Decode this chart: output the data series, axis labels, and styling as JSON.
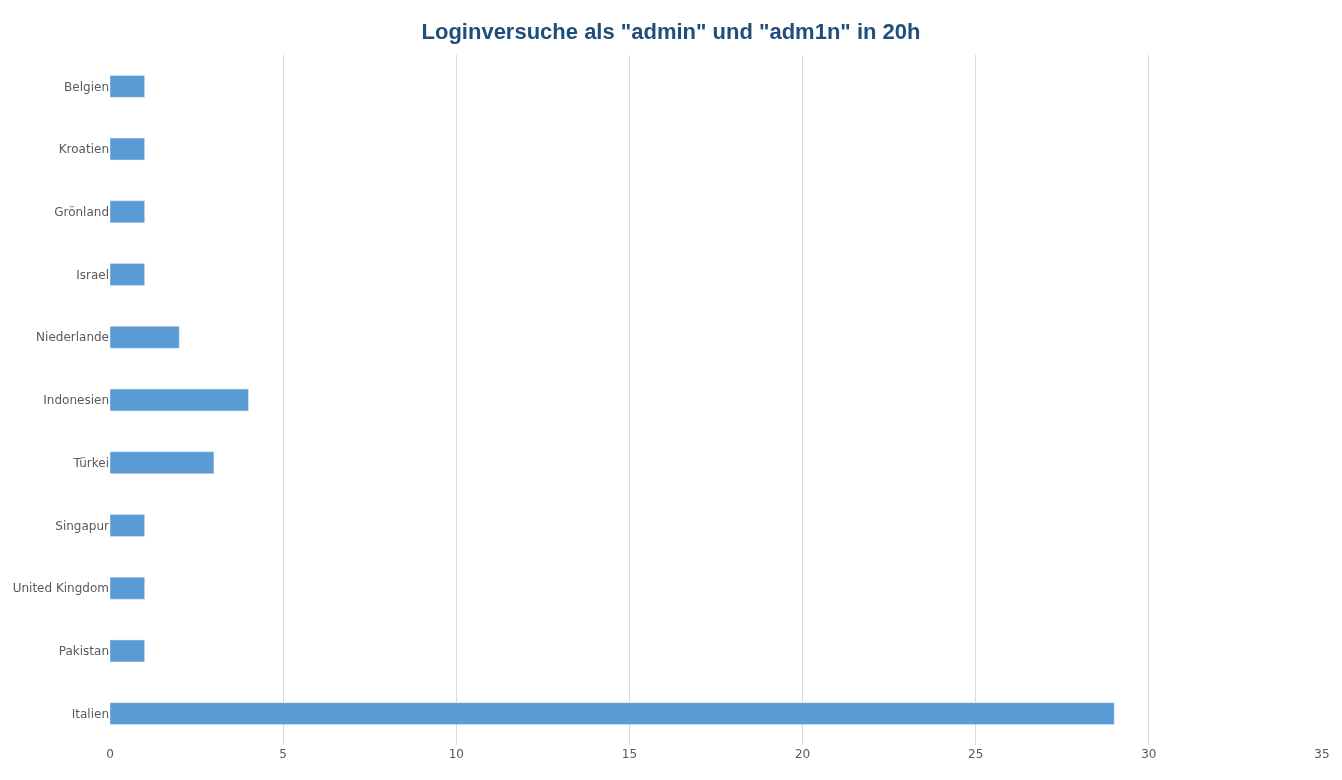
{
  "chart_data": {
    "type": "bar",
    "orientation": "horizontal",
    "title": "Loginversuche als \"admin\" und \"adm1n\" in 20h",
    "categories": [
      "Belgien",
      "Kroatien",
      "Grönland",
      "Israel",
      "Niederlande",
      "Indonesien",
      "Türkei",
      "Singapur",
      "United Kingdom",
      "Pakistan",
      "Italien"
    ],
    "values": [
      1,
      1,
      1,
      1,
      2,
      4,
      3,
      1,
      1,
      1,
      29
    ],
    "color": "#5b9bd5",
    "xlim": [
      0,
      35
    ],
    "xticks": [
      0,
      5,
      10,
      15,
      20,
      25,
      30,
      35
    ],
    "grid": "x"
  }
}
